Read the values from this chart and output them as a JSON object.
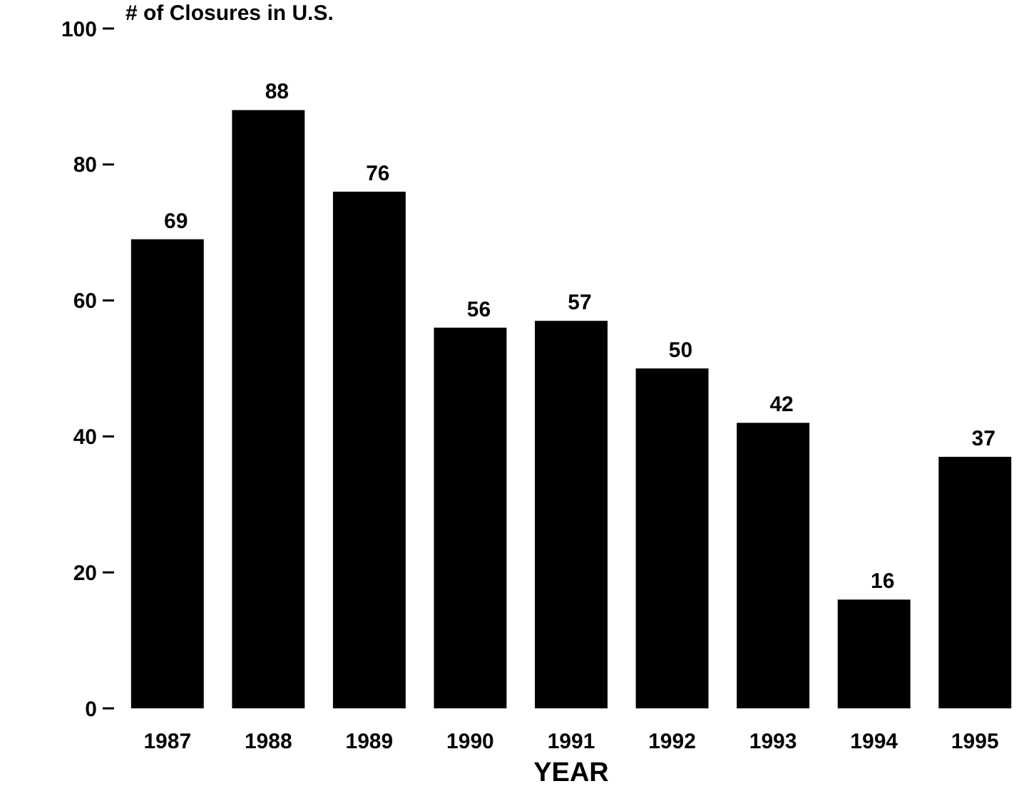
{
  "chart_data": {
    "type": "bar",
    "ylabel": "# of Closures in U.S.",
    "xlabel": "YEAR",
    "categories": [
      "1987",
      "1988",
      "1989",
      "1990",
      "1991",
      "1992",
      "1993",
      "1994",
      "1995"
    ],
    "values": [
      69,
      88,
      76,
      56,
      57,
      50,
      42,
      16,
      37
    ],
    "color": "#000000",
    "ylim": [
      0,
      100
    ],
    "yticks": [
      0,
      20,
      40,
      60,
      80,
      100
    ],
    "data_labels": true
  }
}
